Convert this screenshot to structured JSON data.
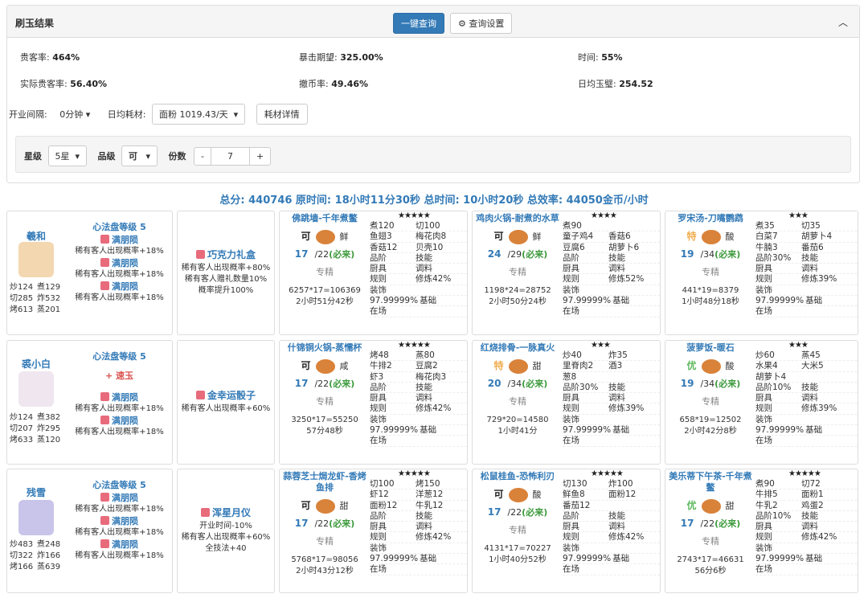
{
  "header": {
    "title": "刷玉结果",
    "btn_query": "一键查询",
    "btn_settings": "查询设置"
  },
  "stats": [
    {
      "label": "贵客率:",
      "value": "464%"
    },
    {
      "label": "暴击期望:",
      "value": "325.00%"
    },
    {
      "label": "时间:",
      "value": "55%"
    },
    {
      "label": "实际贵客率:",
      "value": "56.40%"
    },
    {
      "label": "撤币率:",
      "value": "49.46%"
    },
    {
      "label": "日均玉璧:",
      "value": "254.52"
    }
  ],
  "controls": {
    "interval_label": "开业间隔:",
    "interval_value": "0分钟",
    "cost_label": "日均耗材:",
    "cost_value": "面粉 1019.43/天",
    "cost_btn": "耗材详情",
    "star_label": "星级",
    "star_value": "5星",
    "grade_label": "品级",
    "grade_value": "可",
    "portion_label": "份数",
    "minus": "-",
    "portion_value": "7",
    "plus": "+"
  },
  "summary": "总分: 440746 原时间: 18小时11分30秒 总时间: 10小时20秒 总效率: 44050金币/小时",
  "rows": [
    {
      "chef": {
        "name": "羲和",
        "stats": [
          "炒124",
          "煮129",
          "切285",
          "炸532",
          "烤613",
          "蒸201"
        ],
        "disk": "心法盘等级 5",
        "buffs": [
          {
            "title": "满朋陨",
            "desc": "稀有客人出现概率+18%",
            "color": "#337ab7"
          },
          {
            "title": "满朋陨",
            "desc": "稀有客人出现概率+18%",
            "color": "#337ab7"
          },
          {
            "title": "满朋陨",
            "desc": "稀有客人出现概率+18%",
            "color": "#337ab7"
          }
        ]
      },
      "equip": {
        "name": "巧克力礼盒",
        "effects": [
          "稀有客人出现概率+80%",
          "稀有客人赠礼数量10%概率提升100%"
        ]
      },
      "recipes": [
        {
          "name": "佛跳墙-千年煮鳖",
          "stars": "★★★★★",
          "quality": {
            "text": "可",
            "color": "#222"
          },
          "taste": "鲜",
          "count": "17",
          "limit": "/22",
          "note": "(必来)",
          "skill": "专精",
          "formula": "6257*17=106369",
          "time": "2小时51分42秒",
          "grid": [
            [
              "煮120",
              "切100"
            ],
            [
              "鱼翅3",
              "梅花肉8"
            ],
            [
              "香菇12",
              "贝壳10"
            ],
            [
              "品阶",
              "技能"
            ],
            [
              "厨具",
              "调料"
            ],
            [
              "规则",
              "修炼42%"
            ],
            [
              "装饰"
            ],
            [
              "97.99999%",
              "基础"
            ],
            [
              "在场"
            ]
          ]
        },
        {
          "name": "鸡肉火锅-耐煮的水草",
          "stars": "★★★★",
          "quality": {
            "text": "可",
            "color": "#222"
          },
          "taste": "鲜",
          "count": "24",
          "limit": "/29",
          "note": "(必来)",
          "skill": "专精",
          "formula": "1198*24=28752",
          "time": "2小时50分24秒",
          "grid": [
            [
              "煮90"
            ],
            [
              "童子鸡4",
              "香菇6"
            ],
            [
              "豆腐6",
              "胡萝卜6"
            ],
            [
              "品阶",
              "技能"
            ],
            [
              "厨具",
              "调料"
            ],
            [
              "规则",
              "修炼52%"
            ],
            [
              "装饰"
            ],
            [
              "97.99999%",
              "基础"
            ],
            [
              "在场"
            ]
          ]
        },
        {
          "name": "罗宋汤-刀嘴鹦鹉",
          "stars": "★★★",
          "quality": {
            "text": "特",
            "color": "#f0ad4e"
          },
          "taste": "酸",
          "count": "19",
          "limit": "/34",
          "note": "(必来)",
          "skill": "专精",
          "formula": "441*19=8379",
          "time": "1小时48分18秒",
          "grid": [
            [
              "煮35",
              "切35"
            ],
            [
              "白菜7",
              "胡萝卜4"
            ],
            [
              "牛腩3",
              "番茄6"
            ],
            [
              "品阶30%",
              "技能"
            ],
            [
              "厨具",
              "调料"
            ],
            [
              "规则",
              "修炼39%"
            ],
            [
              "装饰"
            ],
            [
              "97.99999%",
              "基础"
            ],
            [
              "在场"
            ]
          ]
        }
      ]
    },
    {
      "chef": {
        "name": "裘小白",
        "stats": [
          "炒124",
          "煮382",
          "切207",
          "炸295",
          "烤633",
          "蒸120"
        ],
        "disk": "心法盘等级 5",
        "buffs": [
          {
            "title": "+ 速玉",
            "color": "#d9534f"
          },
          {
            "title": "满朋陨",
            "desc": "稀有客人出现概率+18%",
            "color": "#337ab7"
          },
          {
            "title": "满朋陨",
            "desc": "稀有客人出现概率+18%",
            "color": "#337ab7"
          }
        ]
      },
      "equip": {
        "name": "金幸运骰子",
        "effects": [
          "稀有客人出现概率+60%"
        ]
      },
      "recipes": [
        {
          "name": "什锦铜火锅-蒸懦杯",
          "stars": "★★★★★",
          "quality": {
            "text": "可",
            "color": "#222"
          },
          "taste": "咸",
          "count": "17",
          "limit": "/22",
          "note": "(必来)",
          "skill": "专精",
          "formula": "3250*17=55250",
          "time": "57分48秒",
          "grid": [
            [
              "烤48",
              "蒸80"
            ],
            [
              "牛排2",
              "豆腐2"
            ],
            [
              "虾3",
              "梅花肉3"
            ],
            [
              "品阶",
              "技能"
            ],
            [
              "厨具",
              "调料"
            ],
            [
              "规则",
              "修炼42%"
            ],
            [
              "装饰"
            ],
            [
              "97.99999%",
              "基础"
            ],
            [
              "在场"
            ]
          ]
        },
        {
          "name": "红烧排骨-一脉真火",
          "stars": "★★★",
          "quality": {
            "text": "特",
            "color": "#f0ad4e"
          },
          "taste": "甜",
          "count": "20",
          "limit": "/34",
          "note": "(必来)",
          "skill": "专精",
          "formula": "729*20=14580",
          "time": "1小时41分",
          "grid": [
            [
              "炒40",
              "炸35"
            ],
            [
              "里脊肉2",
              "酒3"
            ],
            [
              "葱8"
            ],
            [
              "品阶30%",
              "技能"
            ],
            [
              "厨具",
              "调料"
            ],
            [
              "规则",
              "修炼39%"
            ],
            [
              "装饰"
            ],
            [
              "97.99999%",
              "基础"
            ],
            [
              "在场"
            ]
          ]
        },
        {
          "name": "菠萝饭-暖石",
          "stars": "★★★",
          "quality": {
            "text": "优",
            "color": "#5cb85c"
          },
          "taste": "酸",
          "count": "19",
          "limit": "/34",
          "note": "(必来)",
          "skill": "专精",
          "formula": "658*19=12502",
          "time": "2小时42分8秒",
          "grid": [
            [
              "炒60",
              "蒸45"
            ],
            [
              "水果4",
              "大米5"
            ],
            [
              "胡萝卜4"
            ],
            [
              "品阶10%",
              "技能"
            ],
            [
              "厨具",
              "调料"
            ],
            [
              "规则",
              "修炼39%"
            ],
            [
              "装饰"
            ],
            [
              "97.99999%",
              "基础"
            ],
            [
              "在场"
            ]
          ]
        }
      ]
    },
    {
      "chef": {
        "name": "残雪",
        "stats": [
          "炒483",
          "煮248",
          "切322",
          "炸166",
          "烤166",
          "蒸639"
        ],
        "disk": "心法盘等级 5",
        "buffs": [
          {
            "title": "满朋陨",
            "desc": "稀有客人出现概率+18%",
            "color": "#337ab7"
          },
          {
            "title": "满朋陨",
            "desc": "稀有客人出现概率+18%",
            "color": "#337ab7"
          },
          {
            "title": "满朋陨",
            "desc": "稀有客人出现概率+18%",
            "color": "#337ab7"
          }
        ]
      },
      "equip": {
        "name": "浑星月仪",
        "effects": [
          "开业时间-10%",
          "稀有客人出现概率+60%",
          "全技法+40"
        ]
      },
      "recipes": [
        {
          "name": "蒜蓉芝士焗龙虾-香烤鱼排",
          "stars": "★★★★★",
          "quality": {
            "text": "可",
            "color": "#222"
          },
          "taste": "甜",
          "count": "17",
          "limit": "/22",
          "note": "(必来)",
          "skill": "专精",
          "formula": "5768*17=98056",
          "time": "2小时43分12秒",
          "grid": [
            [
              "切100",
              "烤150"
            ],
            [
              "虾12",
              "洋葱12"
            ],
            [
              "面粉12",
              "牛乳12"
            ],
            [
              "品阶",
              "技能"
            ],
            [
              "厨具",
              "调料"
            ],
            [
              "规则",
              "修炼42%"
            ],
            [
              "装饰"
            ],
            [
              "97.99999%",
              "基础"
            ],
            [
              "在场"
            ]
          ]
        },
        {
          "name": "松鼠桂鱼-恐怖利刃",
          "stars": "★★★★★",
          "quality": {
            "text": "可",
            "color": "#222"
          },
          "taste": "酸",
          "count": "17",
          "limit": "/22",
          "note": "(必来)",
          "skill": "专精",
          "formula": "4131*17=70227",
          "time": "1小时40分52秒",
          "grid": [
            [
              "切130",
              "炸100"
            ],
            [
              "鲜鱼8",
              "面粉12"
            ],
            [
              "番茄12"
            ],
            [
              "品阶",
              "技能"
            ],
            [
              "厨具",
              "调料"
            ],
            [
              "规则",
              "修炼42%"
            ],
            [
              "装饰"
            ],
            [
              "97.99999%",
              "基础"
            ],
            [
              "在场"
            ]
          ]
        },
        {
          "name": "美乐蒂下午茶-千年煮鳖",
          "stars": "★★★★★",
          "quality": {
            "text": "优",
            "color": "#5cb85c"
          },
          "taste": "甜",
          "count": "17",
          "limit": "/22",
          "note": "(必来)",
          "skill": "专精",
          "formula": "2743*17=46631",
          "time": "56分6秒",
          "grid": [
            [
              "煮90",
              "切72"
            ],
            [
              "牛排5",
              "面粉1"
            ],
            [
              "牛乳2",
              "鸡蛋2"
            ],
            [
              "品阶10%",
              "技能"
            ],
            [
              "厨具",
              "调料"
            ],
            [
              "规则",
              "修炼42%"
            ],
            [
              "装饰"
            ],
            [
              "97.99999%",
              "基础"
            ],
            [
              "在场"
            ]
          ]
        }
      ]
    }
  ]
}
